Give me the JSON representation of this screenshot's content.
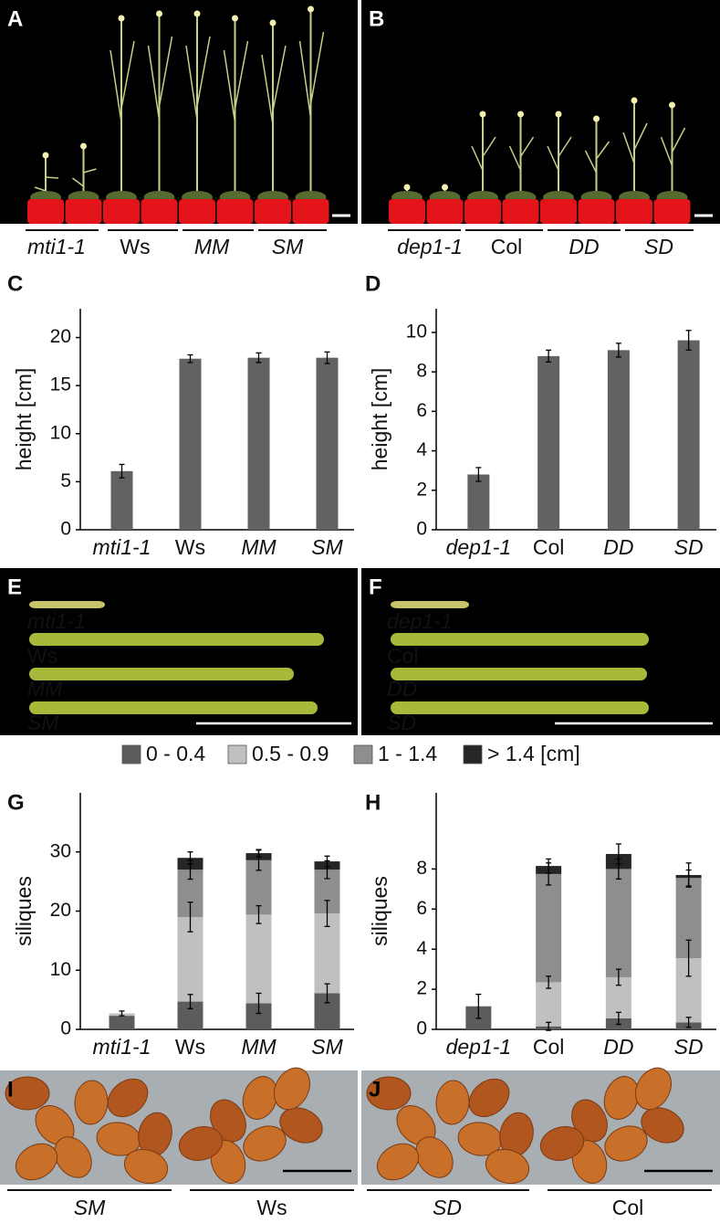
{
  "panels": [
    {
      "letter": "A",
      "labels": [
        "mti1-1",
        "Ws",
        "MM",
        "SM"
      ],
      "italic": [
        true,
        false,
        true,
        true
      ]
    },
    {
      "letter": "B",
      "labels": [
        "dep1-1",
        "Col",
        "DD",
        "SD"
      ],
      "italic": [
        true,
        false,
        true,
        true
      ]
    },
    {
      "letter": "E",
      "labels": [
        "mti1-1",
        "Ws",
        "MM",
        "SM"
      ],
      "italic": [
        true,
        false,
        true,
        true
      ]
    },
    {
      "letter": "F",
      "labels": [
        "dep1-1",
        "Col",
        "DD",
        "SD"
      ],
      "italic": [
        true,
        false,
        true,
        true
      ]
    },
    {
      "letter": "I",
      "labels": [
        "SM",
        "Ws"
      ],
      "italic": [
        true,
        false
      ]
    },
    {
      "letter": "J",
      "labels": [
        "SD",
        "Col"
      ],
      "italic": [
        true,
        false
      ]
    }
  ],
  "chart_data": [
    {
      "type": "bar",
      "panel": "C",
      "ylabel": "height [cm]",
      "categories": [
        "mti1-1",
        "Ws",
        "MM",
        "SM"
      ],
      "italic": [
        true,
        false,
        true,
        true
      ],
      "values": [
        6.1,
        17.8,
        17.9,
        17.9
      ],
      "errors": [
        0.7,
        0.4,
        0.5,
        0.6
      ],
      "color": "#626262",
      "ylim": [
        0,
        23
      ],
      "yticks": [
        0,
        5,
        10,
        15,
        20
      ]
    },
    {
      "type": "bar",
      "panel": "D",
      "ylabel": "height [cm]",
      "categories": [
        "dep1-1",
        "Col",
        "DD",
        "SD"
      ],
      "italic": [
        true,
        false,
        true,
        true
      ],
      "values": [
        2.8,
        8.8,
        9.1,
        9.6
      ],
      "errors": [
        0.35,
        0.3,
        0.35,
        0.5
      ],
      "color": "#626262",
      "ylim": [
        0,
        11.2
      ],
      "yticks": [
        0,
        2,
        4,
        6,
        8,
        10
      ]
    },
    {
      "type": "stacked_bar",
      "panel": "G",
      "ylabel": "siliques",
      "legend": true,
      "categories": [
        "mti1-1",
        "Ws",
        "MM",
        "SM"
      ],
      "italic": [
        true,
        false,
        true,
        true
      ],
      "series": [
        {
          "name": "0 - 0.4",
          "color": "#5c5c5c",
          "values": [
            2.3,
            4.7,
            4.4,
            6.1
          ],
          "errors": [
            null,
            1.2,
            1.7,
            1.6
          ]
        },
        {
          "name": "0.5 - 0.9",
          "color": "#c0c0c0",
          "values": [
            0.4,
            14.3,
            15.0,
            13.5
          ],
          "errors": [
            0.4,
            2.5,
            1.5,
            2.2
          ]
        },
        {
          "name": "1 - 1.4",
          "color": "#8e8e8e",
          "values": [
            0,
            8.0,
            9.2,
            7.4
          ],
          "errors": [
            null,
            1.6,
            1.7,
            1.5
          ]
        },
        {
          "name": "> 1.4 [cm]",
          "color": "#262626",
          "values": [
            0,
            2.0,
            1.2,
            1.4
          ],
          "errors": [
            null,
            1.0,
            0.6,
            0.9
          ]
        }
      ],
      "ylim": [
        0,
        40
      ],
      "yticks": [
        0,
        10,
        20,
        30
      ]
    },
    {
      "type": "stacked_bar",
      "panel": "H",
      "ylabel": "siliques",
      "categories": [
        "dep1-1",
        "Col",
        "DD",
        "SD"
      ],
      "italic": [
        true,
        false,
        true,
        true
      ],
      "series": [
        {
          "color": "#5c5c5c",
          "values": [
            1.15,
            0.15,
            0.55,
            0.35
          ],
          "errors": [
            0.6,
            0.2,
            0.3,
            0.25
          ]
        },
        {
          "color": "#c0c0c0",
          "values": [
            0,
            2.2,
            2.05,
            3.2
          ],
          "errors": [
            null,
            0.3,
            0.4,
            0.9
          ]
        },
        {
          "color": "#8e8e8e",
          "values": [
            0,
            5.4,
            5.4,
            4.0
          ],
          "errors": [
            null,
            0.55,
            0.5,
            0.4
          ]
        },
        {
          "color": "#262626",
          "values": [
            0,
            0.4,
            0.75,
            0.15
          ],
          "errors": [
            null,
            0.35,
            0.5,
            0.6
          ]
        }
      ],
      "ylim": [
        0,
        11.8
      ],
      "yticks": [
        0,
        2,
        4,
        6,
        8
      ]
    }
  ]
}
